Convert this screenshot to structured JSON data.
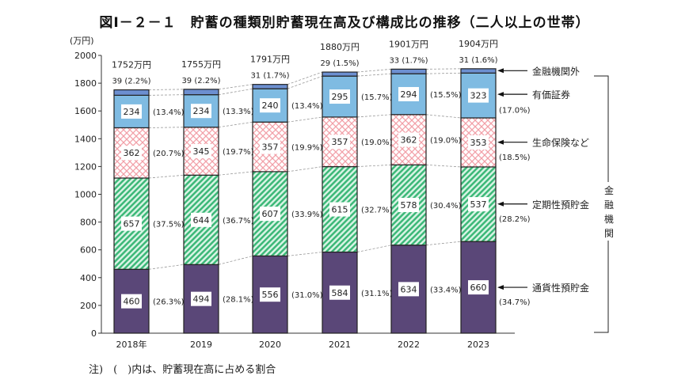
{
  "chart_data": {
    "type": "bar",
    "stacked": true,
    "title": "図Ⅰ－２－１　貯蓄の種類別貯蓄現在高及び構成比の推移（二人以上の世帯）",
    "ylabel": "(万円)",
    "ylim": [
      0,
      2000
    ],
    "yticks": [
      0,
      200,
      400,
      600,
      800,
      1000,
      1200,
      1400,
      1600,
      1800,
      2000
    ],
    "categories": [
      "2018年",
      "2019",
      "2020",
      "2021",
      "2022",
      "2023"
    ],
    "totals": [
      "1752万円",
      "1755万円",
      "1791万円",
      "1880万円",
      "1901万円",
      "1904万円"
    ],
    "series": [
      {
        "name": "通貨性預貯金",
        "color": "#5a4778",
        "values": [
          460,
          494,
          556,
          584,
          634,
          660
        ],
        "shares": [
          "(26.3%)",
          "(28.1%)",
          "(31.0%)",
          "(31.1%)",
          "(33.4%)",
          "(34.7%)"
        ]
      },
      {
        "name": "定期性預貯金",
        "color": "#3cb878",
        "values": [
          657,
          644,
          607,
          615,
          578,
          537
        ],
        "shares": [
          "(37.5%)",
          "(36.7%)",
          "(33.9%)",
          "(32.7%)",
          "(30.4%)",
          "(28.2%)"
        ]
      },
      {
        "name": "生命保険など",
        "color": "#f2a0a8",
        "values": [
          362,
          345,
          357,
          357,
          362,
          353
        ],
        "shares": [
          "(20.7%)",
          "(19.7%)",
          "(19.9%)",
          "(19.0%)",
          "(19.0%)",
          "(18.5%)"
        ]
      },
      {
        "name": "有価証券",
        "color": "#7fbbe2",
        "values": [
          234,
          234,
          240,
          295,
          294,
          323
        ],
        "shares": [
          "(13.4%)",
          "(13.3%)",
          "(13.4%)",
          "(15.7%)",
          "(15.5%)",
          "(17.0%)"
        ]
      },
      {
        "name": "金融機関外",
        "color": "#6c8fd0",
        "values": [
          39,
          39,
          31,
          29,
          33,
          31
        ],
        "shares": [
          "(2.2%)",
          "(2.2%)",
          "(1.7%)",
          "(1.5%)",
          "(1.7%)",
          "(1.6%)"
        ]
      }
    ],
    "bracket_label": "金融機関",
    "note": "注)　(　)内は、貯蓄現在高に占める割合"
  }
}
